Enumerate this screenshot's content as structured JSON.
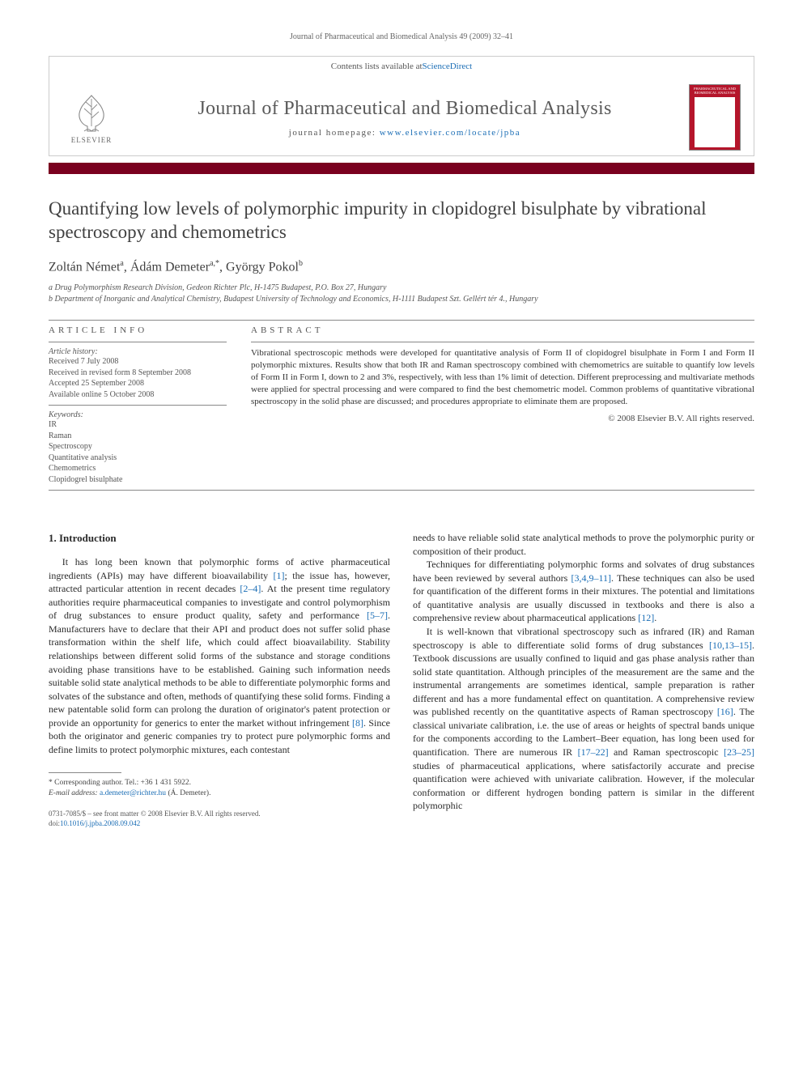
{
  "header_line": "Journal of Pharmaceutical and Biomedical Analysis 49 (2009) 32–41",
  "banner": {
    "contents_text": "Contents lists available at ",
    "contents_link": "ScienceDirect",
    "journal_name": "Journal of Pharmaceutical and Biomedical Analysis",
    "homepage_label": "journal homepage: ",
    "homepage_url": "www.elsevier.com/locate/jpba",
    "publisher_label": "ELSEVIER",
    "cover_label": "PHARMACEUTICAL AND BIOMEDICAL ANALYSIS",
    "cover_bg": "#b5152b"
  },
  "colors": {
    "bar": "#7a001f",
    "link": "#1a6db5",
    "text": "#333333",
    "heading": "#404040"
  },
  "title": "Quantifying low levels of polymorphic impurity in clopidogrel bisulphate by vibrational spectroscopy and chemometrics",
  "authors_html": "Zoltán Német<sup>a</sup>, Ádám Demeter<sup>a,*</sup>, György Pokol<sup>b</sup>",
  "affiliations": [
    "a Drug Polymorphism Research Division, Gedeon Richter Plc, H-1475 Budapest, P.O. Box 27, Hungary",
    "b Department of Inorganic and Analytical Chemistry, Budapest University of Technology and Economics, H-1111 Budapest Szt. Gellért tér 4., Hungary"
  ],
  "info_heading": "ARTICLE INFO",
  "abstract_heading": "ABSTRACT",
  "history": {
    "label": "Article history:",
    "items": [
      "Received 7 July 2008",
      "Received in revised form 8 September 2008",
      "Accepted 25 September 2008",
      "Available online 5 October 2008"
    ]
  },
  "keywords": {
    "label": "Keywords:",
    "items": [
      "IR",
      "Raman",
      "Spectroscopy",
      "Quantitative analysis",
      "Chemometrics",
      "Clopidogrel bisulphate"
    ]
  },
  "abstract": "Vibrational spectroscopic methods were developed for quantitative analysis of Form II of clopidogrel bisulphate in Form I and Form II polymorphic mixtures. Results show that both IR and Raman spectroscopy combined with chemometrics are suitable to quantify low levels of Form II in Form I, down to 2 and 3%, respectively, with less than 1% limit of detection. Different preprocessing and multivariate methods were applied for spectral processing and were compared to find the best chemometric model. Common problems of quantitative vibrational spectroscopy in the solid phase are discussed; and procedures appropriate to eliminate them are proposed.",
  "copyright": "© 2008 Elsevier B.V. All rights reserved.",
  "section1_heading": "1. Introduction",
  "col1": {
    "p1a": "It has long been known that polymorphic forms of active pharmaceutical ingredients (APIs) may have different bioavailability ",
    "r1": "[1]",
    "p1b": "; the issue has, however, attracted particular attention in recent decades ",
    "r2": "[2–4]",
    "p1c": ". At the present time regulatory authorities require pharmaceutical companies to investigate and control polymorphism of drug substances to ensure product quality, safety and performance ",
    "r3": "[5–7]",
    "p1d": ". Manufacturers have to declare that their API and product does not suffer solid phase transformation within the shelf life, which could affect bioavailability. Stability relationships between different solid forms of the substance and storage conditions avoiding phase transitions have to be established. Gaining such information needs suitable solid state analytical methods to be able to differentiate polymorphic forms and solvates of the substance and often, methods of quantifying these solid forms. Finding a new patentable solid form can prolong the duration of originator's patent protection or provide an opportunity for generics to enter the market without infringement ",
    "r4": "[8]",
    "p1e": ". Since both the originator and generic companies try to protect pure polymorphic forms and define limits to protect polymorphic mixtures, each contestant"
  },
  "col2": {
    "p1": "needs to have reliable solid state analytical methods to prove the polymorphic purity or composition of their product.",
    "p2a": "Techniques for differentiating polymorphic forms and solvates of drug substances have been reviewed by several authors ",
    "r1": "[3,4,9–11]",
    "p2b": ". These techniques can also be used for quantification of the different forms in their mixtures. The potential and limitations of quantitative analysis are usually discussed in textbooks and there is also a comprehensive review about pharmaceutical applications ",
    "r2": "[12]",
    "p2c": ".",
    "p3a": "It is well-known that vibrational spectroscopy such as infrared (IR) and Raman spectroscopy is able to differentiate solid forms of drug substances ",
    "r3": "[10,13–15]",
    "p3b": ". Textbook discussions are usually confined to liquid and gas phase analysis rather than solid state quantitation. Although principles of the measurement are the same and the instrumental arrangements are sometimes identical, sample preparation is rather different and has a more fundamental effect on quantitation. A comprehensive review was published recently on the quantitative aspects of Raman spectroscopy ",
    "r4": "[16]",
    "p3c": ". The classical univariate calibration, i.e. the use of areas or heights of spectral bands unique for the components according to the Lambert–Beer equation, has long been used for quantification. There are numerous IR ",
    "r5": "[17–22]",
    "p3d": " and Raman spectroscopic ",
    "r6": "[23–25]",
    "p3e": " studies of pharmaceutical applications, where satisfactorily accurate and precise quantification were achieved with univariate calibration. However, if the molecular conformation or different hydrogen bonding pattern is similar in the different polymorphic"
  },
  "footnote": {
    "corr_label": "* Corresponding author. Tel.: +36 1 431 5922.",
    "email_label": "E-mail address: ",
    "email": "a.demeter@richter.hu",
    "email_name": " (Á. Demeter)."
  },
  "footer": {
    "line1": "0731-7085/$ – see front matter © 2008 Elsevier B.V. All rights reserved.",
    "doi_label": "doi:",
    "doi": "10.1016/j.jpba.2008.09.042"
  }
}
